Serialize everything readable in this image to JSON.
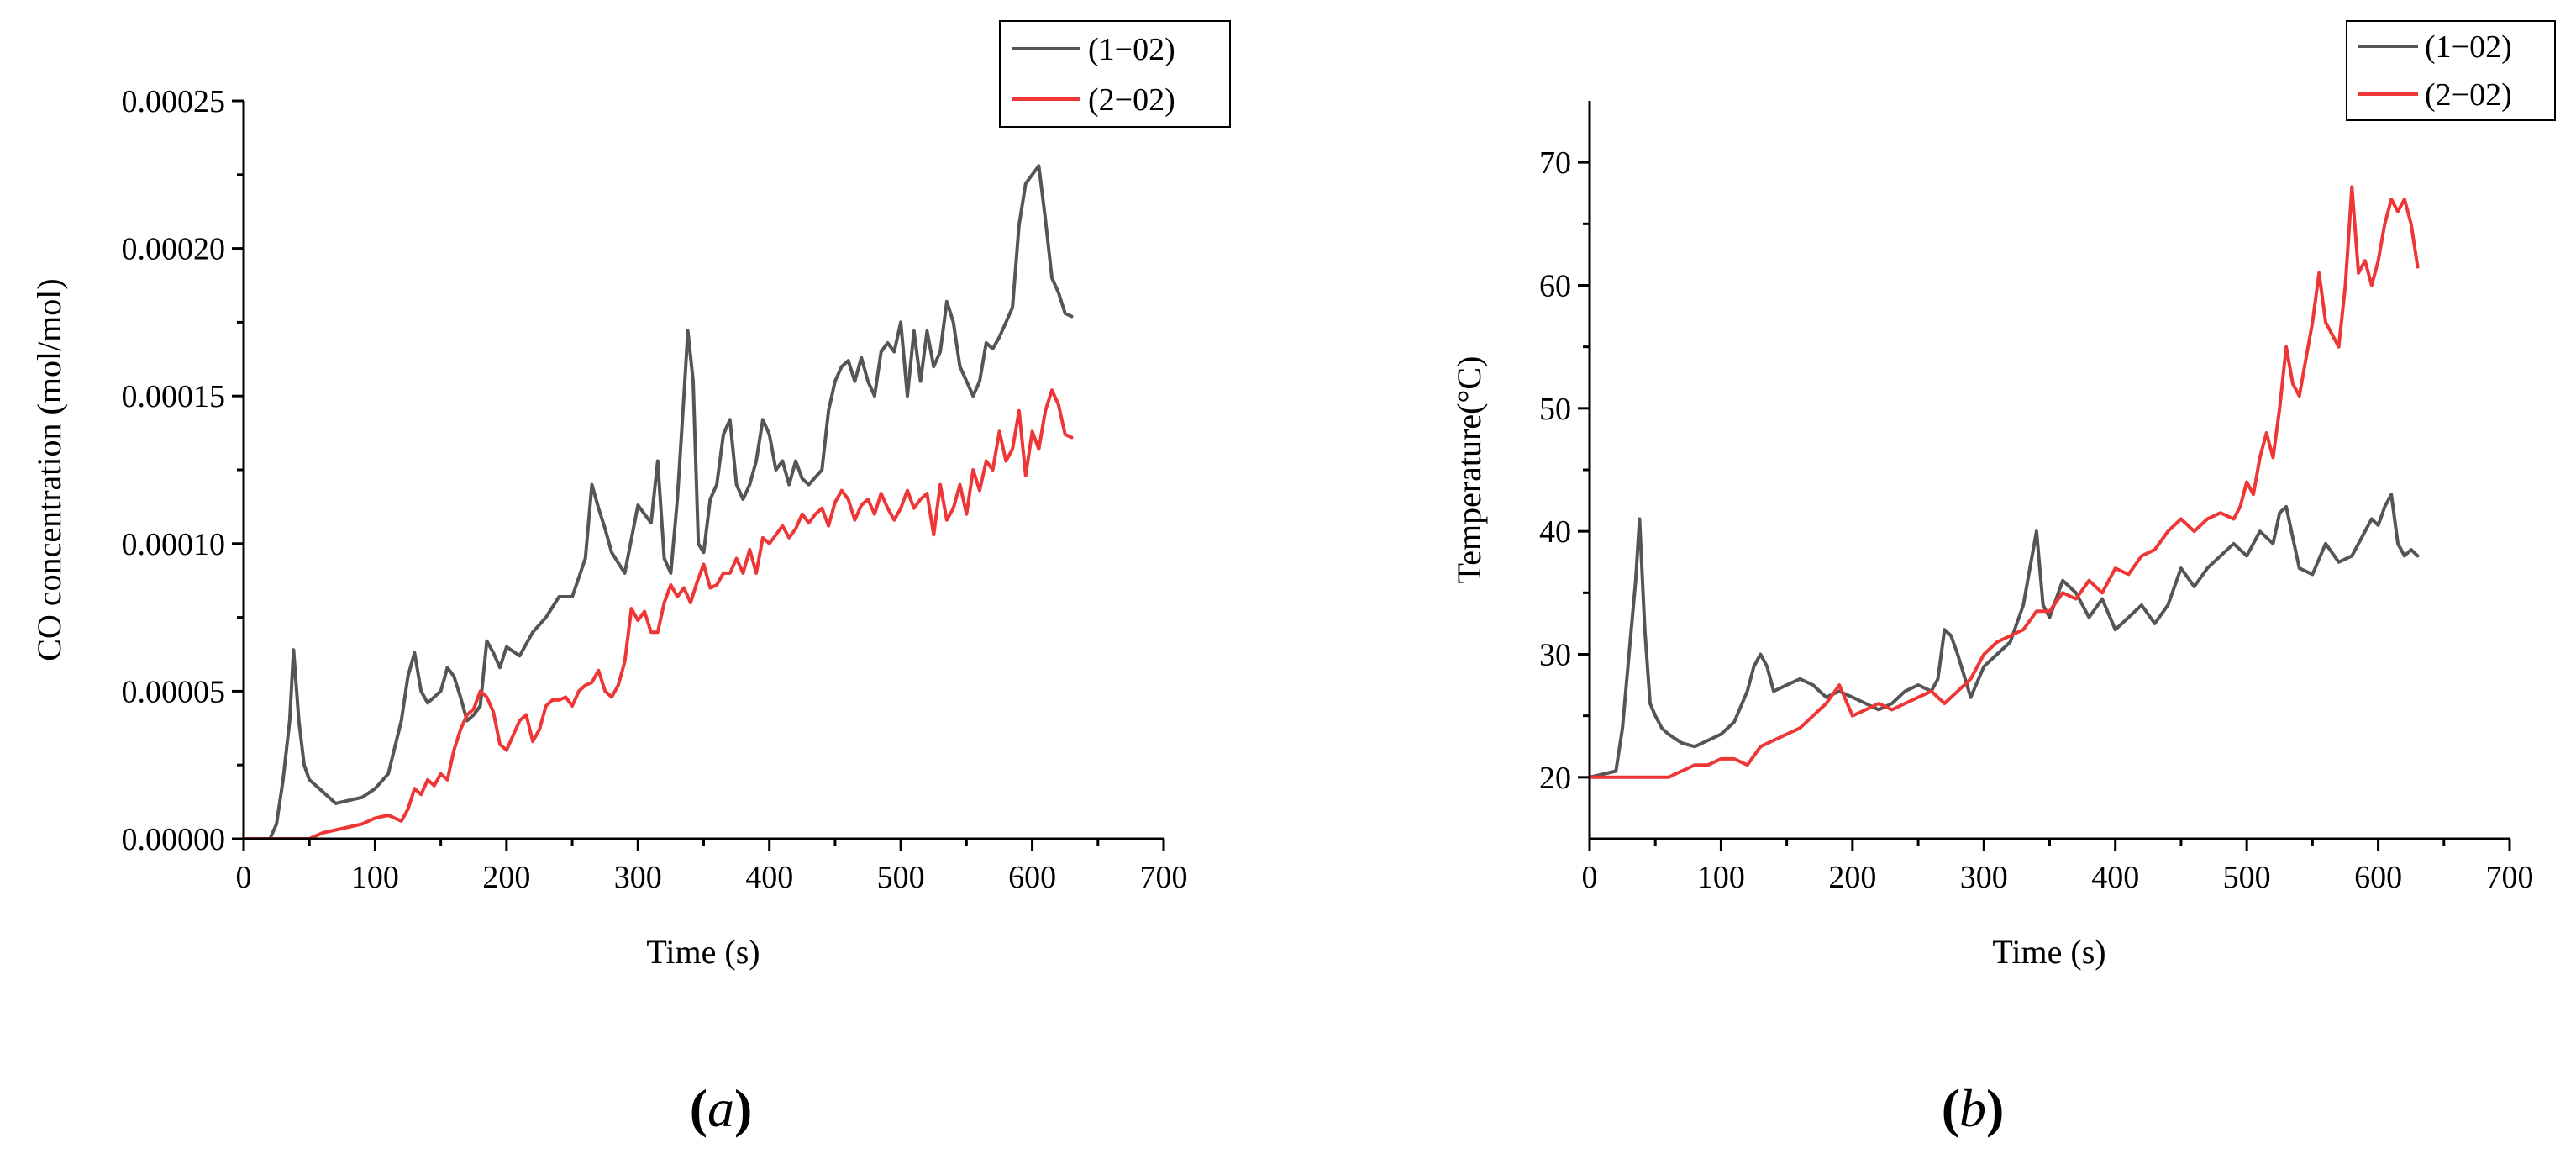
{
  "chart_data": [
    {
      "type": "line",
      "panel_label_parts": [
        "(",
        "a",
        ")"
      ],
      "xlabel": "Time (s)",
      "ylabel": "CO concentration (mol/mol)",
      "xlim": [
        0,
        700
      ],
      "ylim": [
        0,
        0.00025
      ],
      "xticks": [
        0,
        100,
        200,
        300,
        400,
        500,
        600,
        700
      ],
      "yticks": [
        "0.00000",
        "0.00005",
        "0.00010",
        "0.00015",
        "0.00020",
        "0.00025"
      ],
      "ytick_values": [
        0,
        5e-05,
        0.0001,
        0.00015,
        0.0002,
        0.00025
      ],
      "legend_position": "top-right",
      "series": [
        {
          "name": "(1−02)",
          "color": "#555555",
          "x": [
            0,
            20,
            25,
            30,
            35,
            38,
            42,
            46,
            50,
            60,
            70,
            80,
            90,
            100,
            110,
            120,
            125,
            130,
            135,
            140,
            150,
            155,
            160,
            165,
            170,
            175,
            180,
            185,
            190,
            195,
            200,
            210,
            220,
            230,
            240,
            250,
            260,
            265,
            270,
            275,
            280,
            290,
            300,
            305,
            310,
            315,
            320,
            325,
            330,
            335,
            338,
            342,
            346,
            350,
            355,
            360,
            365,
            370,
            375,
            380,
            385,
            390,
            395,
            400,
            405,
            410,
            415,
            420,
            425,
            430,
            440,
            445,
            450,
            455,
            460,
            465,
            470,
            475,
            480,
            485,
            490,
            495,
            500,
            505,
            510,
            515,
            520,
            525,
            530,
            535,
            540,
            545,
            550,
            555,
            560,
            565,
            570,
            575,
            580,
            585,
            590,
            595,
            600,
            605,
            610,
            615,
            620,
            625,
            630
          ],
          "values": [
            0,
            0,
            5e-06,
            2e-05,
            4e-05,
            6.4e-05,
            4e-05,
            2.5e-05,
            2e-05,
            1.6e-05,
            1.2e-05,
            1.3e-05,
            1.4e-05,
            1.7e-05,
            2.2e-05,
            4e-05,
            5.5e-05,
            6.3e-05,
            5e-05,
            4.6e-05,
            5e-05,
            5.8e-05,
            5.5e-05,
            4.8e-05,
            4e-05,
            4.2e-05,
            4.5e-05,
            6.7e-05,
            6.3e-05,
            5.8e-05,
            6.5e-05,
            6.2e-05,
            7e-05,
            7.5e-05,
            8.2e-05,
            8.2e-05,
            9.5e-05,
            0.00012,
            0.000112,
            0.000105,
            9.7e-05,
            9e-05,
            0.000113,
            0.00011,
            0.000107,
            0.000128,
            9.5e-05,
            9e-05,
            0.000115,
            0.00015,
            0.000172,
            0.000155,
            0.0001,
            9.7e-05,
            0.000115,
            0.00012,
            0.000137,
            0.000142,
            0.00012,
            0.000115,
            0.00012,
            0.000128,
            0.000142,
            0.000137,
            0.000125,
            0.000128,
            0.00012,
            0.000128,
            0.000122,
            0.00012,
            0.000125,
            0.000145,
            0.000155,
            0.00016,
            0.000162,
            0.000155,
            0.000163,
            0.000155,
            0.00015,
            0.000165,
            0.000168,
            0.000165,
            0.000175,
            0.00015,
            0.000172,
            0.000155,
            0.000172,
            0.00016,
            0.000165,
            0.000182,
            0.000175,
            0.00016,
            0.000155,
            0.00015,
            0.000155,
            0.000168,
            0.000166,
            0.00017,
            0.000175,
            0.00018,
            0.000208,
            0.000222,
            0.000225,
            0.000228,
            0.00021,
            0.00019,
            0.000185,
            0.000178,
            0.000177
          ]
        },
        {
          "name": "(2−02)",
          "color": "#ee3636",
          "x": [
            0,
            50,
            60,
            70,
            80,
            90,
            100,
            110,
            120,
            125,
            130,
            135,
            140,
            145,
            150,
            155,
            160,
            165,
            170,
            175,
            180,
            185,
            190,
            195,
            200,
            205,
            210,
            215,
            220,
            225,
            230,
            235,
            240,
            245,
            250,
            255,
            260,
            265,
            270,
            275,
            280,
            285,
            290,
            295,
            300,
            305,
            310,
            315,
            320,
            325,
            330,
            335,
            340,
            345,
            350,
            355,
            360,
            365,
            370,
            375,
            380,
            385,
            390,
            395,
            400,
            405,
            410,
            415,
            420,
            425,
            430,
            435,
            440,
            445,
            450,
            455,
            460,
            465,
            470,
            475,
            480,
            485,
            490,
            495,
            500,
            505,
            510,
            515,
            520,
            525,
            530,
            535,
            540,
            545,
            550,
            555,
            560,
            565,
            570,
            575,
            580,
            585,
            590,
            595,
            600,
            605,
            610,
            615,
            620,
            625,
            630
          ],
          "values": [
            0,
            0,
            2e-06,
            3e-06,
            4e-06,
            5e-06,
            7e-06,
            8e-06,
            6e-06,
            1e-05,
            1.7e-05,
            1.5e-05,
            2e-05,
            1.8e-05,
            2.2e-05,
            2e-05,
            3e-05,
            3.7e-05,
            4.2e-05,
            4.4e-05,
            5e-05,
            4.8e-05,
            4.3e-05,
            3.2e-05,
            3e-05,
            3.5e-05,
            4e-05,
            4.2e-05,
            3.3e-05,
            3.7e-05,
            4.5e-05,
            4.7e-05,
            4.7e-05,
            4.8e-05,
            4.5e-05,
            5e-05,
            5.2e-05,
            5.3e-05,
            5.7e-05,
            5e-05,
            4.8e-05,
            5.2e-05,
            6e-05,
            7.8e-05,
            7.4e-05,
            7.7e-05,
            7e-05,
            7e-05,
            8e-05,
            8.6e-05,
            8.2e-05,
            8.5e-05,
            8e-05,
            8.7e-05,
            9.3e-05,
            8.5e-05,
            8.6e-05,
            9e-05,
            9e-05,
            9.5e-05,
            9e-05,
            9.8e-05,
            9e-05,
            0.000102,
            0.0001,
            0.000103,
            0.000106,
            0.000102,
            0.000105,
            0.00011,
            0.000107,
            0.00011,
            0.000112,
            0.000106,
            0.000114,
            0.000118,
            0.000115,
            0.000108,
            0.000113,
            0.000115,
            0.00011,
            0.000117,
            0.000112,
            0.000108,
            0.000112,
            0.000118,
            0.000112,
            0.000115,
            0.000117,
            0.000103,
            0.00012,
            0.000108,
            0.000112,
            0.00012,
            0.00011,
            0.000125,
            0.000118,
            0.000128,
            0.000125,
            0.000138,
            0.000128,
            0.000132,
            0.000145,
            0.000123,
            0.000138,
            0.000132,
            0.000145,
            0.000152,
            0.000147,
            0.000137,
            0.000136
          ]
        }
      ]
    },
    {
      "type": "line",
      "panel_label_parts": [
        "(",
        "b",
        ")"
      ],
      "xlabel": "Time (s)",
      "ylabel": "Temperature(°C)",
      "xlim": [
        0,
        700
      ],
      "ylim": [
        15,
        75
      ],
      "xticks": [
        0,
        100,
        200,
        300,
        400,
        500,
        600,
        700
      ],
      "yticks": [
        "20",
        "30",
        "40",
        "50",
        "60",
        "70"
      ],
      "ytick_values": [
        20,
        30,
        40,
        50,
        60,
        70
      ],
      "legend_position": "top-right",
      "series": [
        {
          "name": "(1−02)",
          "color": "#555555",
          "x": [
            0,
            20,
            25,
            30,
            35,
            38,
            42,
            46,
            50,
            55,
            60,
            70,
            80,
            90,
            100,
            110,
            120,
            125,
            130,
            135,
            140,
            150,
            160,
            170,
            180,
            190,
            200,
            210,
            220,
            230,
            240,
            250,
            260,
            265,
            270,
            275,
            280,
            290,
            300,
            310,
            320,
            330,
            335,
            340,
            345,
            350,
            360,
            370,
            380,
            390,
            400,
            410,
            420,
            430,
            440,
            450,
            460,
            470,
            480,
            490,
            500,
            510,
            520,
            525,
            530,
            540,
            550,
            560,
            570,
            580,
            590,
            595,
            600,
            605,
            610,
            615,
            620,
            625,
            630
          ],
          "values": [
            20,
            20.5,
            24,
            30,
            36,
            41,
            32,
            26,
            25,
            24,
            23.5,
            22.8,
            22.5,
            23,
            23.5,
            24.5,
            27,
            29,
            30,
            29,
            27,
            27.5,
            28,
            27.5,
            26.5,
            27,
            26.5,
            26,
            25.5,
            26,
            27,
            27.5,
            27,
            28,
            32,
            31.5,
            30,
            26.5,
            29,
            30,
            31,
            34,
            37,
            40,
            34,
            33,
            36,
            35,
            33,
            34.5,
            32,
            33,
            34,
            32.5,
            34,
            37,
            35.5,
            37,
            38,
            39,
            38,
            40,
            39,
            41.5,
            42,
            37,
            36.5,
            39,
            37.5,
            38,
            40,
            41,
            40.5,
            42,
            43,
            39,
            38,
            38.5,
            38
          ]
        },
        {
          "name": "(2−02)",
          "color": "#ee3636",
          "x": [
            0,
            60,
            70,
            80,
            90,
            100,
            110,
            120,
            130,
            140,
            150,
            160,
            170,
            180,
            190,
            200,
            210,
            220,
            230,
            240,
            250,
            260,
            270,
            280,
            290,
            300,
            310,
            320,
            330,
            340,
            350,
            360,
            370,
            380,
            390,
            400,
            410,
            420,
            430,
            440,
            450,
            460,
            470,
            480,
            490,
            495,
            500,
            505,
            510,
            515,
            520,
            525,
            530,
            535,
            540,
            545,
            550,
            555,
            560,
            565,
            570,
            575,
            580,
            585,
            590,
            595,
            600,
            605,
            610,
            615,
            620,
            625,
            630
          ],
          "values": [
            20,
            20,
            20.5,
            21,
            21,
            21.5,
            21.5,
            21,
            22.5,
            23,
            23.5,
            24,
            25,
            26,
            27.5,
            25,
            25.5,
            26,
            25.5,
            26,
            26.5,
            27,
            26,
            27,
            28,
            30,
            31,
            31.5,
            32,
            33.5,
            33.5,
            35,
            34.5,
            36,
            35,
            37,
            36.5,
            38,
            38.5,
            40,
            41,
            40,
            41,
            41.5,
            41,
            42,
            44,
            43,
            46,
            48,
            46,
            50,
            55,
            52,
            51,
            54,
            57,
            61,
            57,
            56,
            55,
            60,
            68,
            61,
            62,
            60,
            62,
            65,
            67,
            66,
            67,
            65,
            61.5
          ]
        }
      ]
    }
  ]
}
